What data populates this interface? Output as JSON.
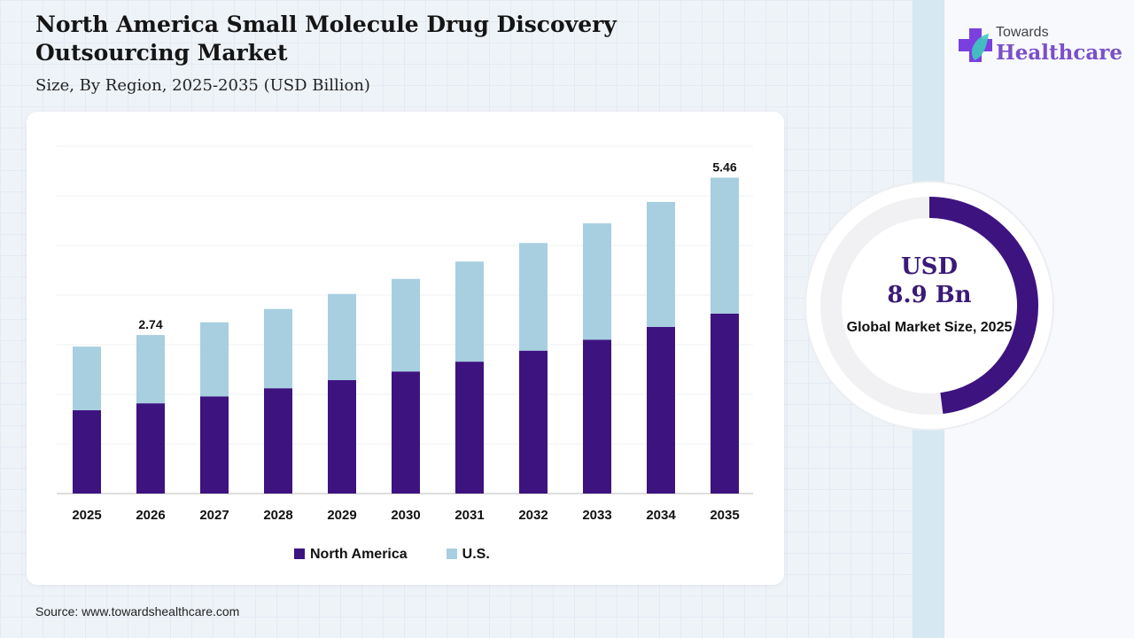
{
  "title": "North America Small Molecule Drug Discovery Outsourcing Market",
  "subtitle": "Size, By Region, 2025-2035 (USD Billion)",
  "source": "Source: www.towardshealthcare.com",
  "logo": {
    "line1": "Towards",
    "line2": "Healthcare"
  },
  "summary": {
    "value_line1": "USD",
    "value_line2": "8.9 Bn",
    "label": "Global Market Size, 2025",
    "share": 0.48,
    "color": "#3d1380"
  },
  "colors": {
    "north_america": "#3d1380",
    "us": "#a7cfe0"
  },
  "chart_data": {
    "type": "bar",
    "stacked": true,
    "title": "North America Small Molecule Drug Discovery Outsourcing Market",
    "xlabel": "",
    "ylabel": "USD Billion",
    "categories": [
      "2025",
      "2026",
      "2027",
      "2028",
      "2029",
      "2030",
      "2031",
      "2032",
      "2033",
      "2034",
      "2035"
    ],
    "series": [
      {
        "name": "North America",
        "values": [
          1.44,
          1.56,
          1.68,
          1.82,
          1.96,
          2.11,
          2.28,
          2.47,
          2.66,
          2.88,
          3.11
        ]
      },
      {
        "name": "U.S.",
        "values": [
          1.1,
          1.18,
          1.28,
          1.37,
          1.49,
          1.6,
          1.73,
          1.86,
          2.01,
          2.16,
          2.35
        ]
      }
    ],
    "annotations": [
      {
        "category": "2026",
        "label": "2.74"
      },
      {
        "category": "2035",
        "label": "5.46"
      }
    ],
    "ylim": [
      0,
      6
    ],
    "grid": true,
    "legend": "bottom"
  }
}
